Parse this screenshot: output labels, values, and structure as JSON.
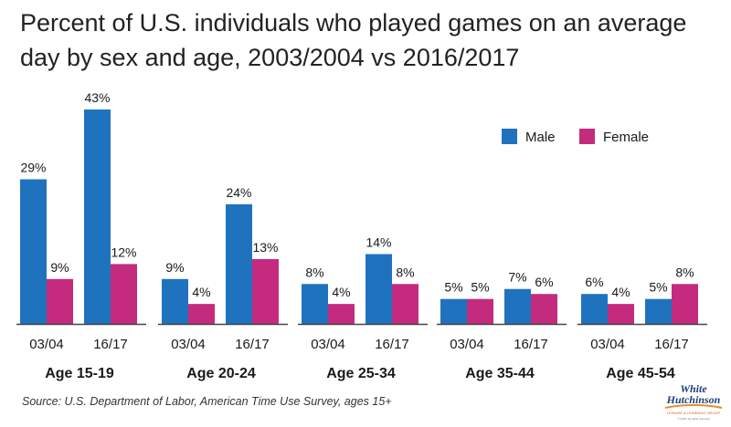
{
  "title": "Percent of U.S. individuals who played games on an average day by sex and age, 2003/2004 vs 2016/2017",
  "source": "Source: U.S. Department of Labor, American Time Use Survey, ages 15+",
  "logo": {
    "line1": "White",
    "line2": "Hutchinson",
    "tagline": "LEISURE & LEARNING GROUP",
    "small": "© 2018, All rights reserved"
  },
  "colors": {
    "male": "#1f73be",
    "female": "#c42b7e",
    "axis": "#444444",
    "text": "#1a1a1a"
  },
  "chart_data": {
    "type": "bar",
    "legend_position": "top-right",
    "grid": false,
    "ylim": [
      0,
      45
    ],
    "series_names": [
      "Male",
      "Female"
    ],
    "groups": [
      {
        "label": "Age 15-19",
        "periods": [
          {
            "label": "03/04",
            "values": [
              29,
              9
            ]
          },
          {
            "label": "16/17",
            "values": [
              43,
              12
            ]
          }
        ]
      },
      {
        "label": "Age 20-24",
        "periods": [
          {
            "label": "03/04",
            "values": [
              9,
              4
            ]
          },
          {
            "label": "16/17",
            "values": [
              24,
              13
            ]
          }
        ]
      },
      {
        "label": "Age 25-34",
        "periods": [
          {
            "label": "03/04",
            "values": [
              8,
              4
            ]
          },
          {
            "label": "16/17",
            "values": [
              14,
              8
            ]
          }
        ]
      },
      {
        "label": "Age 35-44",
        "periods": [
          {
            "label": "03/04",
            "values": [
              5,
              5
            ]
          },
          {
            "label": "16/17",
            "values": [
              7,
              6
            ]
          }
        ]
      },
      {
        "label": "Age 45-54",
        "periods": [
          {
            "label": "03/04",
            "values": [
              6,
              4
            ]
          },
          {
            "label": "16/17",
            "values": [
              5,
              8
            ]
          }
        ]
      }
    ],
    "value_suffix": "%"
  }
}
